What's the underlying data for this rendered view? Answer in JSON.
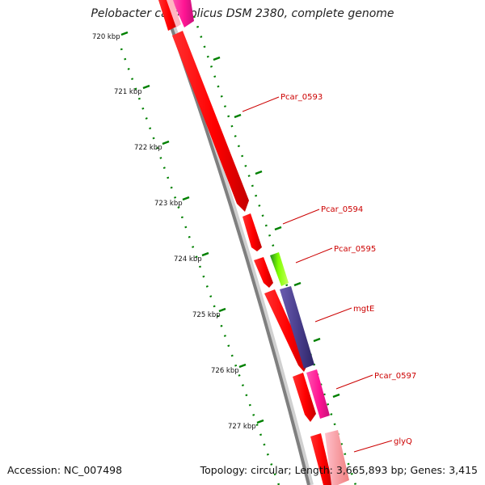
{
  "title": "Pelobacter carbinolicus DSM 2380, complete genome",
  "footer": {
    "accession": "Accession: NC_007498",
    "summary": "Topology: circular; Length: 3,665,893 bp; Genes: 3,415"
  },
  "ruler": {
    "unit": "kbp",
    "tick_labels": [
      "720 kbp",
      "721 kbp",
      "722 kbp",
      "723 kbp",
      "724 kbp",
      "725 kbp",
      "726 kbp",
      "727 kbp"
    ]
  },
  "genes": [
    {
      "label": "",
      "strand": "inner",
      "color": "#ff0000"
    },
    {
      "label": "",
      "strand": "outer",
      "color": "#ff1493"
    },
    {
      "label": "Pcar_0593",
      "strand": "inner",
      "color": "#ff0000"
    },
    {
      "label": "Pcar_0594",
      "strand": "inner",
      "color": "#ff0000"
    },
    {
      "label": "Pcar_0595",
      "strand": "outer",
      "color": "#7fff00"
    },
    {
      "label": "",
      "strand": "inner",
      "color": "#ff0000"
    },
    {
      "label": "mgtE",
      "strand": "outer",
      "color": "#483d8b"
    },
    {
      "label": "",
      "strand": "inner",
      "color": "#ff0000"
    },
    {
      "label": "Pcar_0597",
      "strand": "outer",
      "color": "#ff1493"
    },
    {
      "label": "",
      "strand": "inner",
      "color": "#ff0000"
    },
    {
      "label": "glyQ",
      "strand": "outer",
      "color": "#f08080"
    }
  ],
  "colors": {
    "backbone": "#7f7f7f",
    "gc_ticks": "#008000",
    "label_text": "#cc0000",
    "label_line": "#cc0000"
  }
}
